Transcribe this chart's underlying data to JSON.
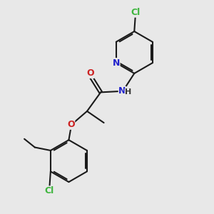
{
  "background_color": "#e8e8e8",
  "bond_color": "#1a1a1a",
  "atom_colors": {
    "Cl": "#3db53d",
    "N": "#2222cc",
    "O": "#cc2222",
    "H": "#333333",
    "C": "#1a1a1a"
  },
  "figsize": [
    3.0,
    3.0
  ],
  "dpi": 100
}
